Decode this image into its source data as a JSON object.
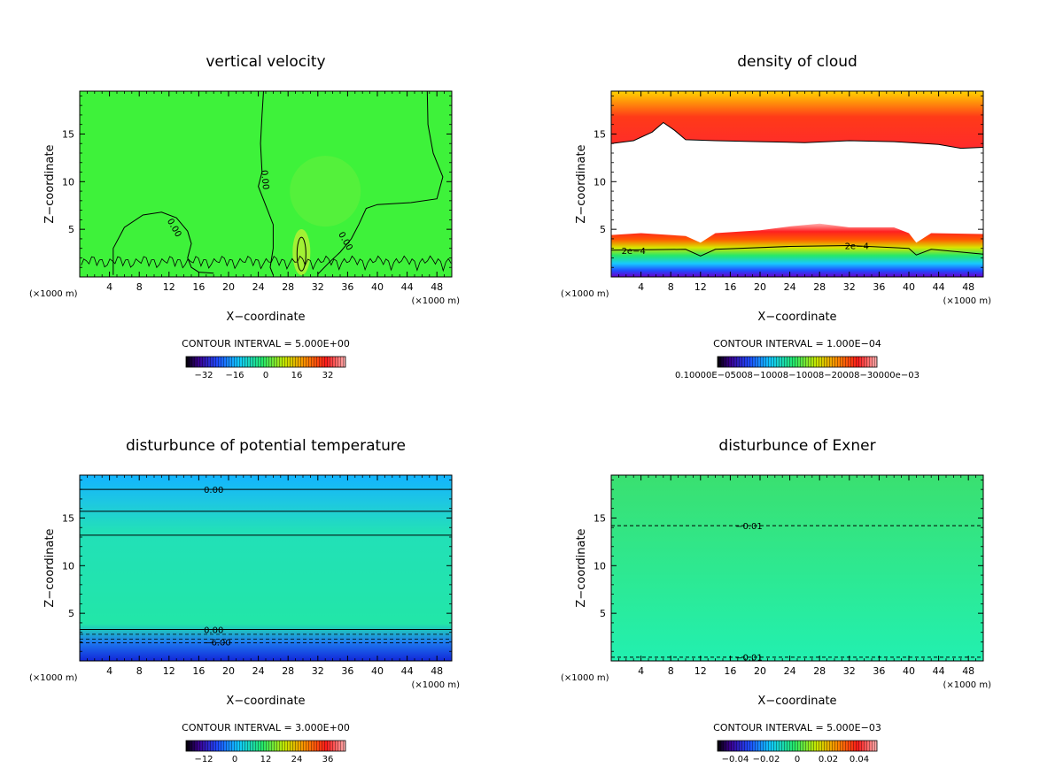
{
  "chart_data": [
    {
      "type": "heatmap",
      "title": "vertical velocity",
      "xlabel": "X−coordinate",
      "ylabel": "Z−coordinate",
      "x_unit_left": "(×1000 m)",
      "x_unit_right": "(×1000 m)",
      "xlim": [
        0,
        50
      ],
      "ylim": [
        0,
        19.5
      ],
      "xticks": [
        4,
        8,
        12,
        16,
        20,
        24,
        28,
        32,
        36,
        40,
        44,
        48
      ],
      "yticks": [
        5,
        10,
        15
      ],
      "contour_interval": "CONTOUR INTERVAL = 5.000E+00",
      "colorbar_ticks": [
        "−32",
        "−16",
        "0",
        "16",
        "32"
      ],
      "contour_labels": [
        {
          "text": "0.00",
          "x": 12.8,
          "y": 5.2
        },
        {
          "text": "0.00",
          "x": 25.0,
          "y": 10.2
        },
        {
          "text": "0.00",
          "x": 35.8,
          "y": 3.8
        }
      ],
      "background": "#3ef23a"
    },
    {
      "type": "heatmap",
      "title": "density of cloud",
      "xlabel": "X−coordinate",
      "ylabel": "Z−coordinate",
      "x_unit_left": "(×1000 m)",
      "x_unit_right": "(×1000 m)",
      "xlim": [
        0,
        50
      ],
      "ylim": [
        0,
        19.5
      ],
      "xticks": [
        4,
        8,
        12,
        16,
        20,
        24,
        28,
        32,
        36,
        40,
        44,
        48
      ],
      "yticks": [
        5,
        10,
        15
      ],
      "contour_interval": "CONTOUR INTERVAL = 1.000E−04",
      "colorbar_ticks": [
        "0.10000E−05008−10008−10008−20008−30000e−03"
      ],
      "contour_labels": [
        {
          "text": "2e−4",
          "x": 3.0,
          "y": 2.8
        },
        {
          "text": "2e−4",
          "x": 33.0,
          "y": 3.3
        }
      ],
      "background": "#ffffff"
    },
    {
      "type": "heatmap",
      "title": "disturbunce of potential temperature",
      "xlabel": "X−coordinate",
      "ylabel": "Z−coordinate",
      "x_unit_left": "(×1000 m)",
      "x_unit_right": "(×1000 m)",
      "xlim": [
        0,
        50
      ],
      "ylim": [
        0,
        19.5
      ],
      "xticks": [
        4,
        8,
        12,
        16,
        20,
        24,
        28,
        32,
        36,
        40,
        44,
        48
      ],
      "yticks": [
        5,
        10,
        15
      ],
      "contour_interval": "CONTOUR INTERVAL = 3.000E+00",
      "colorbar_ticks": [
        "−12",
        "0",
        "12",
        "24",
        "36"
      ],
      "contour_labels": [
        {
          "text": "0.00",
          "x": 18.0,
          "y": 18.0
        },
        {
          "text": "0.00",
          "x": 18.0,
          "y": 3.3
        },
        {
          "text": "−6.00",
          "x": 18.5,
          "y": 2.0
        }
      ],
      "background": "#22e6a8"
    },
    {
      "type": "heatmap",
      "title": "disturbunce of Exner",
      "xlabel": "X−coordinate",
      "ylabel": "Z−coordinate",
      "x_unit_left": "(×1000 m)",
      "x_unit_right": "(×1000 m)",
      "xlim": [
        0,
        50
      ],
      "ylim": [
        0,
        19.5
      ],
      "xticks": [
        4,
        8,
        12,
        16,
        20,
        24,
        28,
        32,
        36,
        40,
        44,
        48
      ],
      "yticks": [
        5,
        10,
        15
      ],
      "contour_interval": "CONTOUR INTERVAL = 5.000E−03",
      "colorbar_ticks": [
        "−0.04",
        "−0.02",
        "0",
        "0.02",
        "0.04"
      ],
      "contour_labels": [
        {
          "text": "−0.01",
          "x": 18.5,
          "y": 14.2
        },
        {
          "text": "−0.01",
          "x": 18.5,
          "y": 0.4
        }
      ],
      "background": "#22ee88"
    }
  ]
}
